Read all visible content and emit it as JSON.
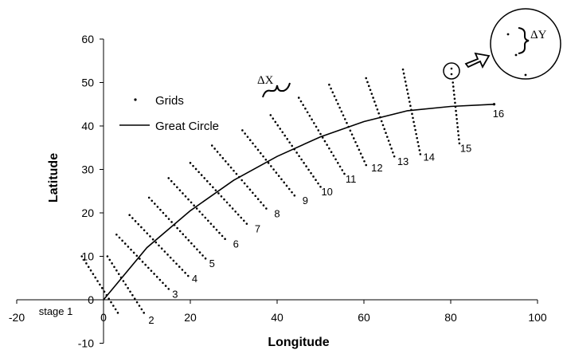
{
  "chart_data": {
    "type": "scatter",
    "xlabel": "Longitude",
    "ylabel": "Latitude",
    "xlim": [
      -20,
      100
    ],
    "ylim": [
      -10,
      60
    ],
    "x_ticks": [
      -20,
      0,
      20,
      40,
      60,
      80,
      100
    ],
    "y_ticks": [
      -10,
      0,
      10,
      20,
      30,
      40,
      50,
      60
    ],
    "x_tick_labels": [
      "-20",
      "0",
      "20",
      "40",
      "60",
      "80",
      "100"
    ],
    "y_tick_labels": [
      "-10",
      "0",
      "10",
      "20",
      "30",
      "40",
      "50",
      "60"
    ],
    "grid": false,
    "legend_position": "upper-left",
    "series": [
      {
        "name": "Grids",
        "marker": "dot",
        "lines": [
          {
            "stage": "stage 1",
            "start": [
              -5,
              10
            ],
            "end": [
              3.3,
              -3
            ]
          },
          {
            "stage": "2",
            "start": [
              0.9,
              10
            ],
            "end": [
              9.3,
              -3
            ]
          },
          {
            "stage": "3",
            "start": [
              3,
              15
            ],
            "end": [
              15,
              2.5
            ]
          },
          {
            "stage": "4",
            "start": [
              6,
              19.5
            ],
            "end": [
              19.5,
              5.5
            ]
          },
          {
            "stage": "5",
            "start": [
              10.5,
              23.5
            ],
            "end": [
              23.5,
              9.5
            ]
          },
          {
            "stage": "6",
            "start": [
              15,
              28
            ],
            "end": [
              28,
              14
            ]
          },
          {
            "stage": "7",
            "start": [
              20,
              31.5
            ],
            "end": [
              33,
              17.5
            ]
          },
          {
            "stage": "8",
            "start": [
              25,
              35.5
            ],
            "end": [
              37.5,
              21
            ]
          },
          {
            "stage": "9",
            "start": [
              32,
              39
            ],
            "end": [
              44,
              24
            ]
          },
          {
            "stage": "10",
            "start": [
              38.5,
              42.5
            ],
            "end": [
              50,
              26
            ]
          },
          {
            "stage": "11",
            "start": [
              45,
              46.5
            ],
            "end": [
              55.5,
              29
            ]
          },
          {
            "stage": "12",
            "start": [
              52,
              49.5
            ],
            "end": [
              60.5,
              31
            ]
          },
          {
            "stage": "13",
            "start": [
              60.5,
              51
            ],
            "end": [
              67,
              33
            ]
          },
          {
            "stage": "14",
            "start": [
              69,
              53
            ],
            "end": [
              73,
              33.5
            ]
          },
          {
            "stage": "15",
            "start": [
              80.5,
              50
            ],
            "end": [
              82,
              36
            ]
          }
        ]
      },
      {
        "name": "Great Circle",
        "line": "solid",
        "x": [
          0,
          10,
          20,
          30,
          40,
          50,
          60,
          70,
          80,
          90
        ],
        "y": [
          0,
          12,
          20.5,
          27.5,
          33,
          37.5,
          41,
          43.5,
          44.5,
          45
        ],
        "end_label": "16"
      }
    ]
  },
  "stage_labels": [
    {
      "text": "stage 1",
      "at": [
        -11,
        -3.5
      ]
    },
    {
      "text": "2",
      "at": [
        11,
        -5.5
      ]
    },
    {
      "text": "3",
      "at": [
        16.5,
        0.5
      ]
    },
    {
      "text": "4",
      "at": [
        21,
        4
      ]
    },
    {
      "text": "5",
      "at": [
        25,
        7.5
      ]
    },
    {
      "text": "6",
      "at": [
        30.5,
        12
      ]
    },
    {
      "text": "7",
      "at": [
        35.5,
        15.5
      ]
    },
    {
      "text": "8",
      "at": [
        40,
        19
      ]
    },
    {
      "text": "9",
      "at": [
        46.5,
        22
      ]
    },
    {
      "text": "10",
      "at": [
        51.5,
        24
      ]
    },
    {
      "text": "11",
      "at": [
        57,
        27
      ]
    },
    {
      "text": "12",
      "at": [
        63,
        29.5
      ]
    },
    {
      "text": "13",
      "at": [
        69,
        31
      ]
    },
    {
      "text": "14",
      "at": [
        75,
        32
      ]
    },
    {
      "text": "15",
      "at": [
        83.5,
        34
      ]
    },
    {
      "text": "16",
      "at": [
        91,
        42
      ]
    }
  ],
  "annotations": {
    "delta_x": "ΔX",
    "delta_y": "ΔY"
  },
  "colors": {
    "ink": "#000000",
    "background": "#ffffff"
  }
}
